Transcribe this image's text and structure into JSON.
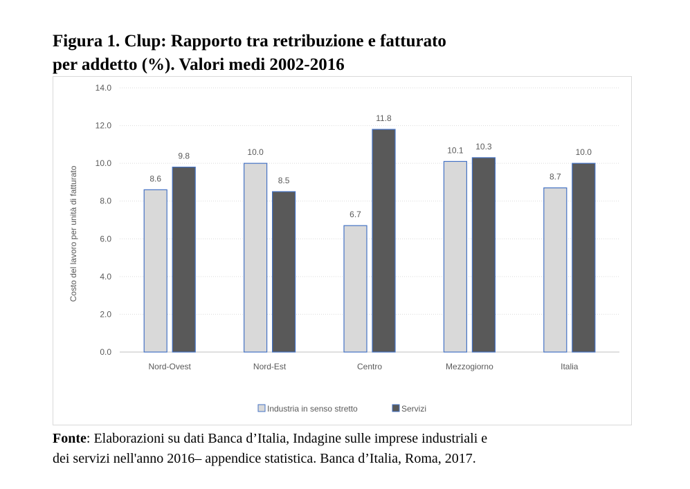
{
  "chart_data": {
    "type": "bar",
    "title": [
      "Figura 1. Clup: Rapporto tra retribuzione e fatturato",
      "per addetto (%). Valori medi 2002-2016"
    ],
    "y_label": "Costo del lavoro per unità di fatturato",
    "categories": [
      "Nord-Ovest",
      "Nord-Est",
      "Centro",
      "Mezzogiorno",
      "Italia"
    ],
    "series": [
      {
        "name": "Industria in senso stretto",
        "color": "#d9d9d9",
        "values": [
          8.6,
          10.0,
          6.7,
          10.1,
          8.7
        ],
        "value_labels": [
          "8.6",
          "10.0",
          "6.7",
          "10.1",
          "8.7"
        ]
      },
      {
        "name": "Servizi",
        "color": "#595959",
        "values": [
          9.8,
          8.5,
          11.8,
          10.3,
          10.0
        ],
        "value_labels": [
          "9.8",
          "8.5",
          "11.8",
          "10.3",
          "10.0"
        ]
      }
    ],
    "ylim": [
      0,
      14
    ],
    "yticks": [
      {
        "value": 0,
        "label": "0.0"
      },
      {
        "value": 2,
        "label": "2.0"
      },
      {
        "value": 4,
        "label": "4.0"
      },
      {
        "value": 6,
        "label": "6.0"
      },
      {
        "value": 8,
        "label": "8.0"
      },
      {
        "value": 10,
        "label": "10.0"
      },
      {
        "value": 12,
        "label": "12.0"
      },
      {
        "value": 14,
        "label": "14.0"
      }
    ],
    "grid": true,
    "legend": "bottom"
  },
  "source": {
    "label": "Fonte",
    "lines": [
      ": Elaborazioni su dati Banca d’Italia, Indagine sulle imprese industriali e",
      "dei servizi nell'anno 2016– appendice statistica. Banca d’Italia, Roma, 2017."
    ]
  }
}
